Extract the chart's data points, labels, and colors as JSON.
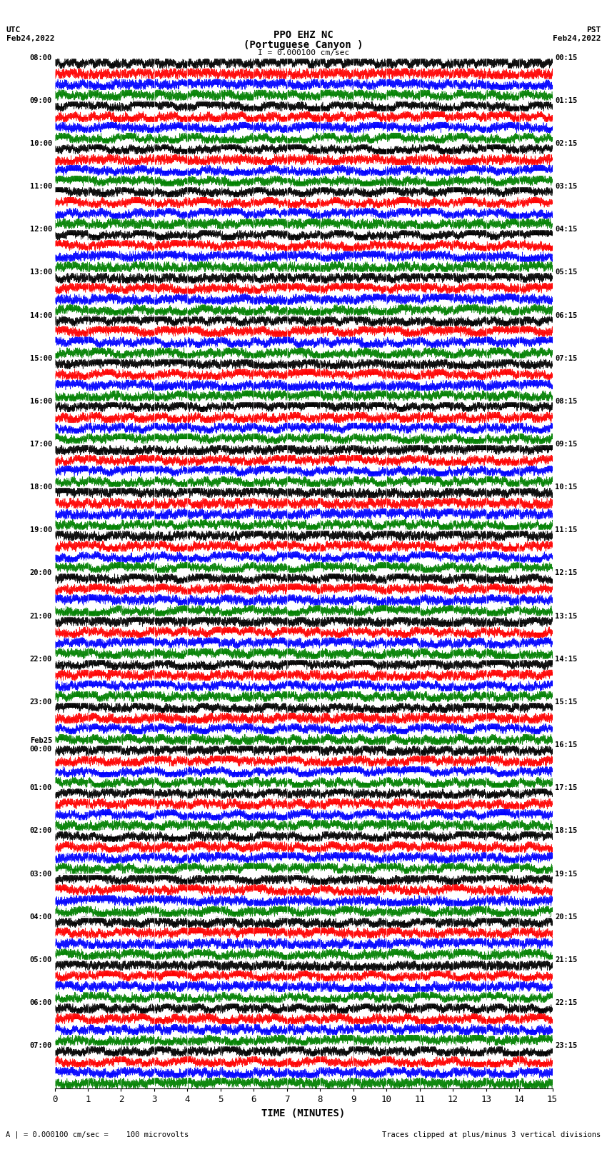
{
  "title_line1": "PPO EHZ NC",
  "title_line2": "(Portuguese Canyon )",
  "title_line3": "I = 0.000100 cm/sec",
  "left_top_label": "UTC\nFeb24,2022",
  "right_top_label": "PST\nFeb24,2022",
  "xlabel": "TIME (MINUTES)",
  "bottom_left_label": "A | = 0.000100 cm/sec =    100 microvolts",
  "bottom_right_label": "Traces clipped at plus/minus 3 vertical divisions",
  "utc_times": [
    "08:00",
    "09:00",
    "10:00",
    "11:00",
    "12:00",
    "13:00",
    "14:00",
    "15:00",
    "16:00",
    "17:00",
    "18:00",
    "19:00",
    "20:00",
    "21:00",
    "22:00",
    "23:00",
    "Feb25\n00:00",
    "01:00",
    "02:00",
    "03:00",
    "04:00",
    "05:00",
    "06:00",
    "07:00"
  ],
  "pst_times": [
    "00:15",
    "01:15",
    "02:15",
    "03:15",
    "04:15",
    "05:15",
    "06:15",
    "07:15",
    "08:15",
    "09:15",
    "10:15",
    "11:15",
    "12:15",
    "13:15",
    "14:15",
    "15:15",
    "16:15",
    "17:15",
    "18:15",
    "19:15",
    "20:15",
    "21:15",
    "22:15",
    "23:15"
  ],
  "num_rows": 24,
  "colors": [
    "black",
    "red",
    "blue",
    "green"
  ],
  "bg_color": "white",
  "xticks": [
    0,
    1,
    2,
    3,
    4,
    5,
    6,
    7,
    8,
    9,
    10,
    11,
    12,
    13,
    14,
    15
  ],
  "figsize": [
    8.5,
    16.13
  ],
  "dpi": 100,
  "traces_per_row": 4,
  "noise_scale": 1.5,
  "high_freq_scale": 0.8
}
